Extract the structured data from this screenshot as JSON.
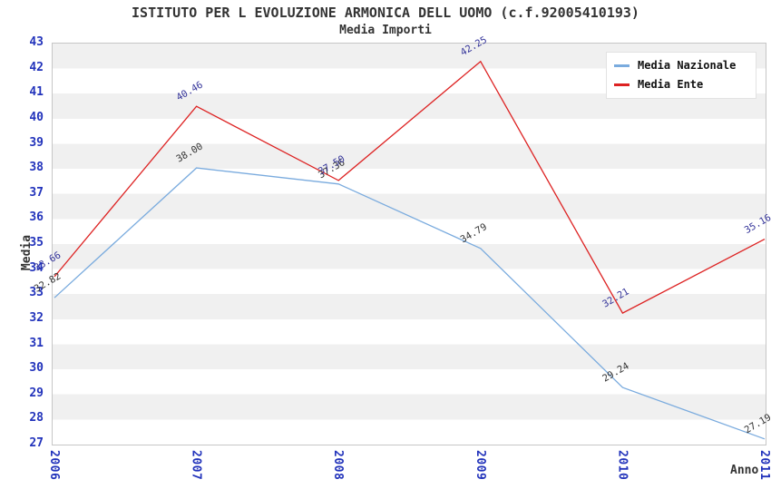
{
  "title": "ISTITUTO PER L EVOLUZIONE ARMONICA DELL UOMO (c.f.92005410193)",
  "subtitle": "Media Importi",
  "chart_data": {
    "type": "line",
    "title": "ISTITUTO PER L EVOLUZIONE ARMONICA DELL UOMO (c.f.92005410193)",
    "subtitle": "Media Importi",
    "xlabel": "Anno",
    "ylabel": "Media",
    "x": [
      2006,
      2007,
      2008,
      2009,
      2010,
      2011
    ],
    "ylim": [
      27,
      43
    ],
    "ytick_step": 1,
    "grid": "horizontal-alternating-bands",
    "legend_position": "top-right",
    "series": [
      {
        "name": "Media Nazionale",
        "color": "#7aabde",
        "label_color": "#333333",
        "values": [
          32.82,
          38.0,
          37.36,
          34.79,
          29.24,
          27.19
        ],
        "labels": [
          "32.82",
          "38.00",
          "37.36",
          "34.79",
          "29.24",
          "27.19"
        ]
      },
      {
        "name": "Media Ente",
        "color": "#dd2222",
        "label_color": "#333399",
        "values": [
          33.66,
          40.46,
          37.5,
          42.25,
          32.21,
          35.16
        ],
        "labels": [
          "33.66",
          "40.46",
          "37.50",
          "42.25",
          "32.21",
          "35.16"
        ]
      }
    ]
  },
  "palette": {
    "tick_label_color": "#2233bb",
    "axis_text_color": "#333333",
    "band_gray": "#f0f0f0",
    "plot_border": "#c6c6c6",
    "background": "#ffffff"
  }
}
